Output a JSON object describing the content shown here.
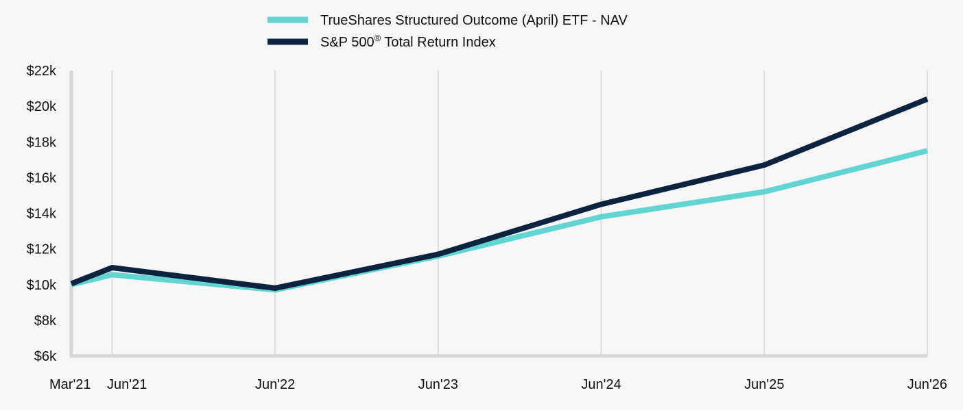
{
  "chart_data": {
    "type": "line",
    "title": "",
    "xlabel": "",
    "ylabel": "",
    "categories": [
      "Mar'21",
      "Jun'21",
      "Jun'22",
      "Jun'23",
      "Jun'24",
      "Jun'25",
      "Jun'26"
    ],
    "x_positions": [
      0,
      0.25,
      1.25,
      2.25,
      3.25,
      4.25,
      5.25
    ],
    "ylim": [
      6000,
      22000
    ],
    "yticks": [
      6000,
      8000,
      10000,
      12000,
      14000,
      16000,
      18000,
      20000,
      22000
    ],
    "ytick_labels": [
      "$6k",
      "$8k",
      "$10k",
      "$12k",
      "$14k",
      "$16k",
      "$18k",
      "$20k",
      "$22k"
    ],
    "grid": "vertical",
    "legend_position": "top-center",
    "series": [
      {
        "name": "TrueShares Structured Outcome (April) ETF - NAV",
        "color": "#62d5d3",
        "values": [
          10000,
          10550,
          9700,
          11600,
          13800,
          15200,
          17500
        ]
      },
      {
        "name": "S&P 500® Total Return Index",
        "name_main": "S&P 500",
        "name_sup": "®",
        "name_rest": " Total Return Index",
        "color": "#0c2340",
        "values": [
          10050,
          10950,
          9800,
          11700,
          14500,
          16700,
          20400
        ]
      }
    ]
  }
}
